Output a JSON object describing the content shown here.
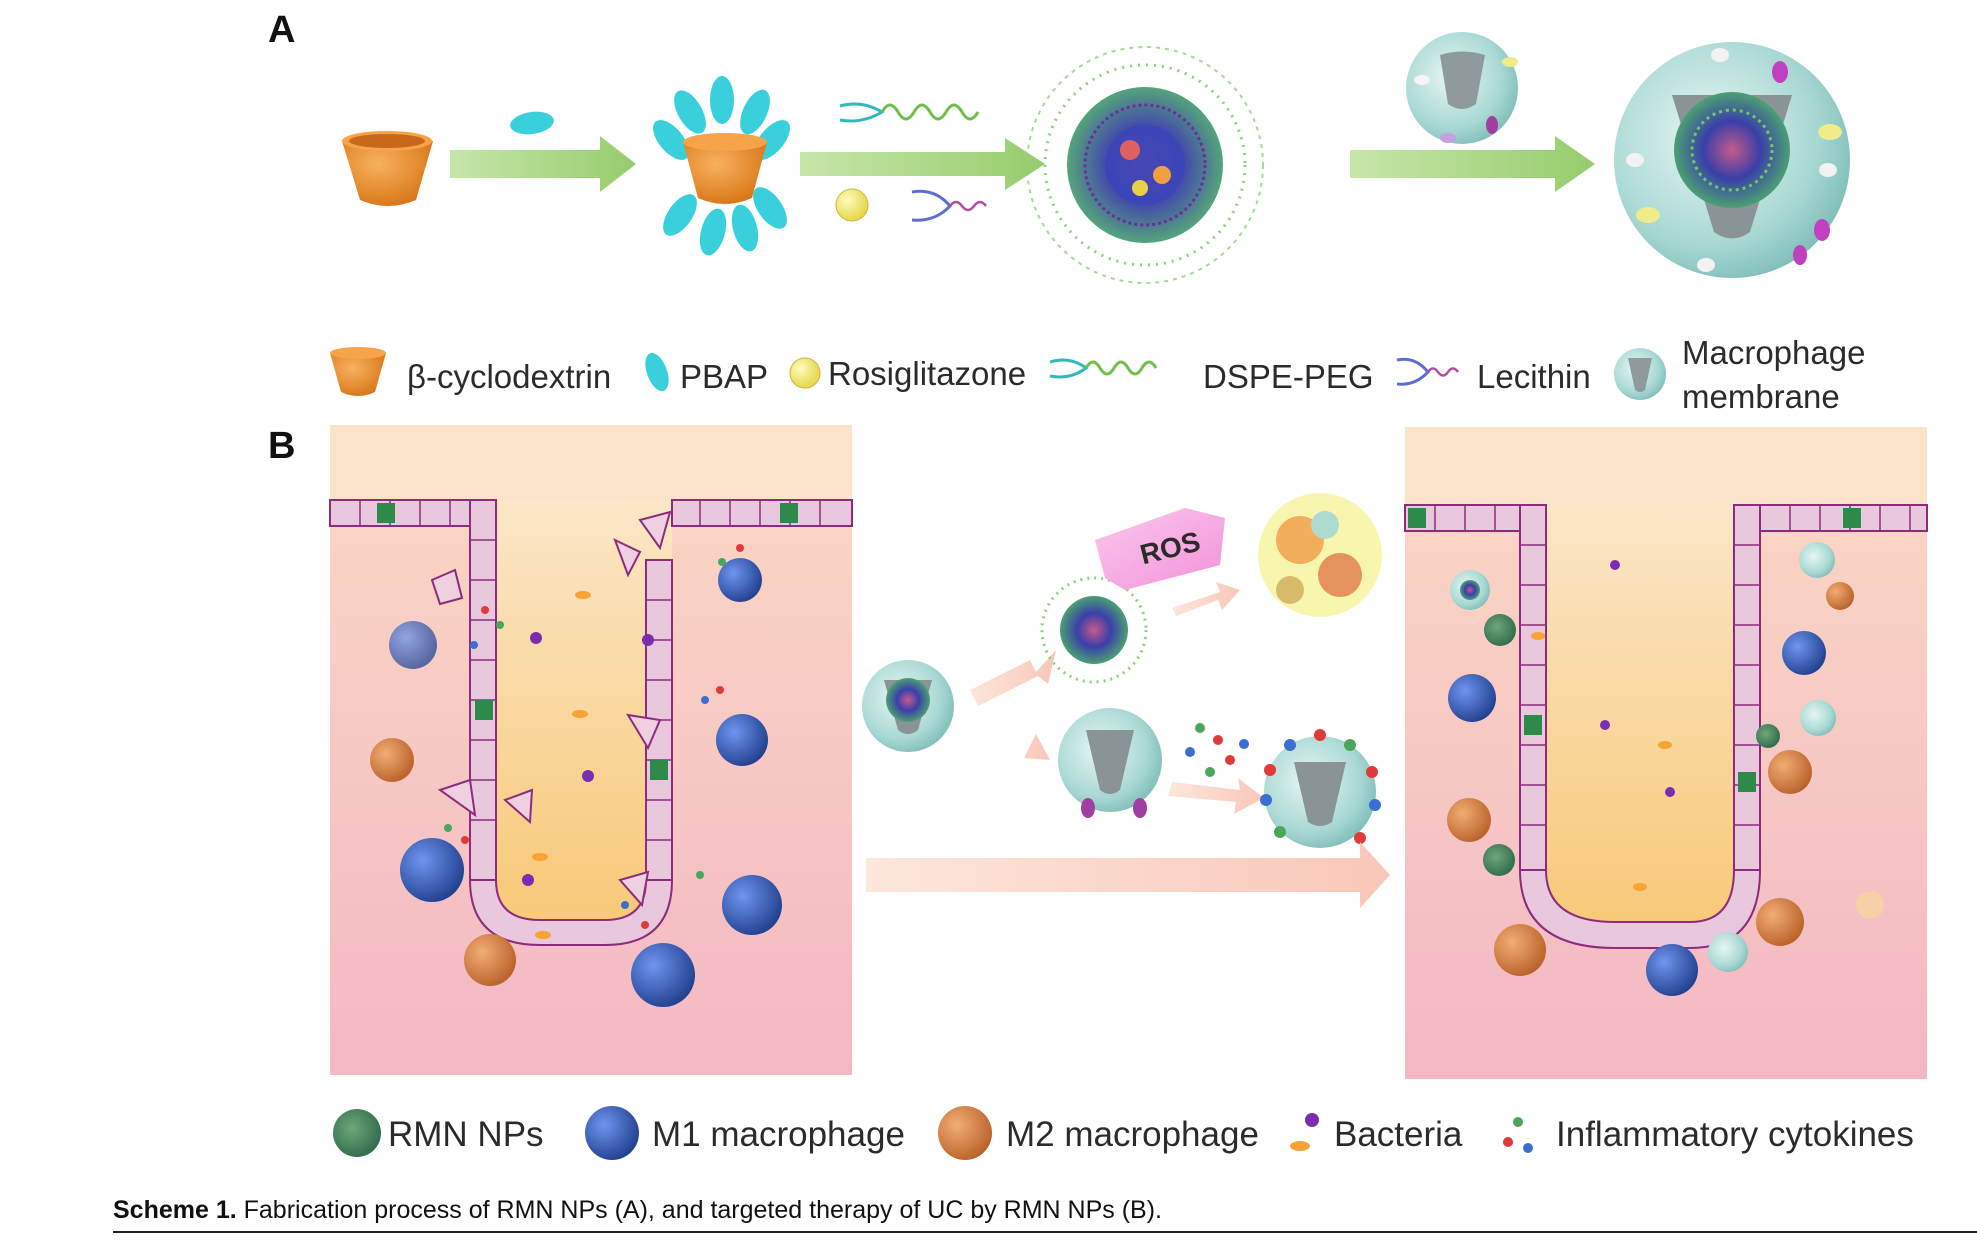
{
  "panels": {
    "a_label": "A",
    "b_label": "B"
  },
  "legend_a": {
    "cyclodextrin": "β-cyclodextrin",
    "pbap": "PBAP",
    "rosiglitazone": "Rosiglitazone",
    "dspe_peg": "DSPE-PEG",
    "lecithin": "Lecithin",
    "macrophage_membrane_line1": "Macrophage",
    "macrophage_membrane_line2": "membrane"
  },
  "ros_label": "ROS",
  "legend_b": {
    "rmn_nps": "RMN NPs",
    "m1": "M1 macrophage",
    "m2": "M2 macrophage",
    "bacteria": "Bacteria",
    "cytokines": "Inflammatory cytokines"
  },
  "caption": {
    "lead": "Scheme 1.",
    "text": " Fabrication process of RMN NPs (A), and targeted therapy of UC by RMN NPs (B)."
  },
  "colors": {
    "cyclodextrin": "#e8892a",
    "pbap": "#39d0dc",
    "rosiglitazone": "#f0e874",
    "arrow_green": "#a6d57e",
    "membrane": "#a9d8d4",
    "m1": "#3a5fbf",
    "m2": "#d9834a",
    "tissue_pink": "#f5c6cf",
    "lumen_orange": "#fbdca5",
    "cell_purple": "#a23c8c"
  }
}
